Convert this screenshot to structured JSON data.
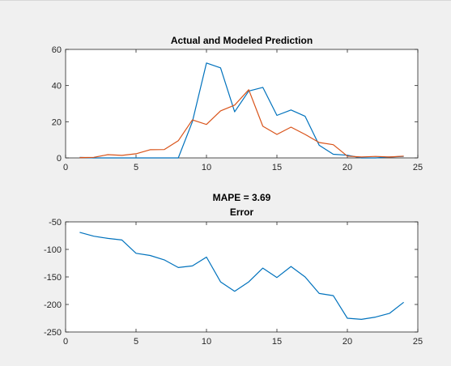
{
  "chart_data": [
    {
      "type": "line",
      "title": "Actual and Modeled Prediction",
      "xlabel": "",
      "ylabel": "",
      "xlim": [
        0,
        25
      ],
      "ylim": [
        0,
        60
      ],
      "xticks": [
        0,
        5,
        10,
        15,
        20,
        25
      ],
      "yticks": [
        0,
        20,
        40,
        60
      ],
      "grid": false,
      "series": [
        {
          "color": "#0072BD",
          "x": [
            1,
            2,
            3,
            4,
            5,
            6,
            7,
            8,
            9,
            10,
            11,
            12,
            13,
            14,
            15,
            16,
            17,
            18,
            19,
            20,
            21,
            22,
            23,
            24
          ],
          "y": [
            0.3,
            0,
            0,
            0,
            0,
            0,
            0,
            0,
            20,
            52.5,
            49.8,
            25.5,
            37,
            39,
            23.5,
            26.5,
            23,
            7,
            2,
            1.5,
            0,
            0,
            0.5,
            0.8
          ]
        },
        {
          "color": "#D95319",
          "x": [
            1,
            2,
            3,
            4,
            5,
            6,
            7,
            8,
            9,
            10,
            11,
            12,
            13,
            14,
            15,
            16,
            17,
            18,
            19,
            20,
            21,
            22,
            23,
            24
          ],
          "y": [
            0.2,
            0.3,
            1.8,
            1.4,
            2.3,
            4.5,
            4.6,
            9.5,
            21,
            18.5,
            26,
            29.2,
            37.7,
            17.5,
            13,
            17,
            13,
            8.5,
            7.3,
            1,
            0.5,
            0.8,
            0.5,
            1
          ]
        }
      ]
    },
    {
      "type": "line",
      "title": "MAPE = 3.69",
      "subtitle": "Error",
      "xlabel": "",
      "ylabel": "",
      "xlim": [
        0,
        25
      ],
      "ylim": [
        -250,
        -50
      ],
      "xticks": [
        0,
        5,
        10,
        15,
        20,
        25
      ],
      "yticks": [
        -250,
        -200,
        -150,
        -100,
        -50
      ],
      "grid": false,
      "series": [
        {
          "color": "#0072BD",
          "x": [
            1,
            2,
            3,
            4,
            5,
            6,
            7,
            8,
            9,
            10,
            11,
            12,
            13,
            14,
            15,
            16,
            17,
            18,
            19,
            20,
            21,
            22,
            23,
            24
          ],
          "y": [
            -69,
            -76,
            -80,
            -83,
            -107,
            -111,
            -119,
            -133,
            -130,
            -114,
            -159,
            -176,
            -159,
            -134,
            -151,
            -131,
            -150,
            -180,
            -184,
            -225,
            -227,
            -223,
            -216,
            -196
          ]
        }
      ]
    }
  ]
}
